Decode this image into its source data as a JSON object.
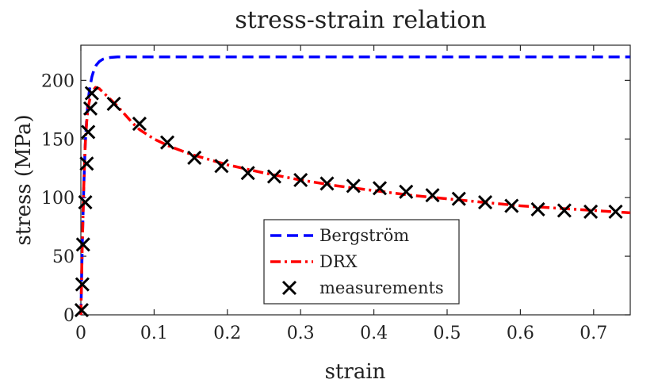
{
  "chart_data": {
    "type": "line",
    "title": "stress-strain relation",
    "xlabel": "strain",
    "ylabel": "stress (MPa)",
    "xlim": [
      0,
      0.75
    ],
    "ylim": [
      0,
      230
    ],
    "xticks": [
      0,
      0.1,
      0.2,
      0.3,
      0.4,
      0.5,
      0.6,
      0.7
    ],
    "xtick_labels": [
      "0",
      "0.1",
      "0.2",
      "0.3",
      "0.4",
      "0.5",
      "0.6",
      "0.7"
    ],
    "yticks": [
      0,
      50,
      100,
      150,
      200
    ],
    "ytick_labels": [
      "0",
      "50",
      "100",
      "150",
      "200"
    ],
    "grid": false,
    "legend_position": "lower-center",
    "series": [
      {
        "name": "Bergström",
        "style": "dashed",
        "color": "#0000ff",
        "x": [
          0,
          0.002,
          0.004,
          0.006,
          0.008,
          0.01,
          0.012,
          0.015,
          0.018,
          0.021,
          0.025,
          0.03,
          0.035,
          0.04,
          0.05,
          0.06,
          0.1,
          0.3,
          0.5,
          0.75
        ],
        "y": [
          0,
          60,
          110,
          145,
          168,
          183,
          193,
          203,
          209,
          213,
          216,
          218,
          219,
          219.5,
          220,
          220,
          220,
          220,
          220,
          220
        ]
      },
      {
        "name": "DRX",
        "style": "dash-dot",
        "color": "#ff0000",
        "x": [
          0,
          0.002,
          0.004,
          0.006,
          0.008,
          0.01,
          0.013,
          0.016,
          0.02,
          0.025,
          0.03,
          0.04,
          0.05,
          0.06,
          0.07,
          0.08,
          0.1,
          0.12,
          0.15,
          0.2,
          0.25,
          0.3,
          0.35,
          0.4,
          0.45,
          0.5,
          0.55,
          0.6,
          0.65,
          0.7,
          0.75
        ],
        "y": [
          0,
          60,
          110,
          145,
          165,
          177,
          186,
          191,
          194,
          193,
          190,
          184,
          178,
          171,
          164,
          158,
          150,
          144,
          137,
          128,
          121,
          115,
          110,
          106,
          102,
          99,
          96,
          93,
          91,
          89,
          87
        ]
      },
      {
        "name": "measurements",
        "style": "markers",
        "marker": "x",
        "color": "#000000",
        "x": [
          0.001,
          0.002,
          0.003,
          0.006,
          0.008,
          0.01,
          0.013,
          0.015,
          0.045,
          0.08,
          0.118,
          0.155,
          0.192,
          0.228,
          0.264,
          0.3,
          0.336,
          0.372,
          0.408,
          0.444,
          0.48,
          0.516,
          0.552,
          0.588,
          0.624,
          0.66,
          0.696,
          0.73
        ],
        "y": [
          4,
          26,
          60,
          96,
          129,
          156,
          176,
          189,
          180,
          163,
          147,
          134,
          127,
          121,
          118,
          115,
          112,
          110,
          108,
          105,
          102,
          99,
          96,
          93,
          90,
          89,
          88,
          88
        ]
      }
    ]
  }
}
